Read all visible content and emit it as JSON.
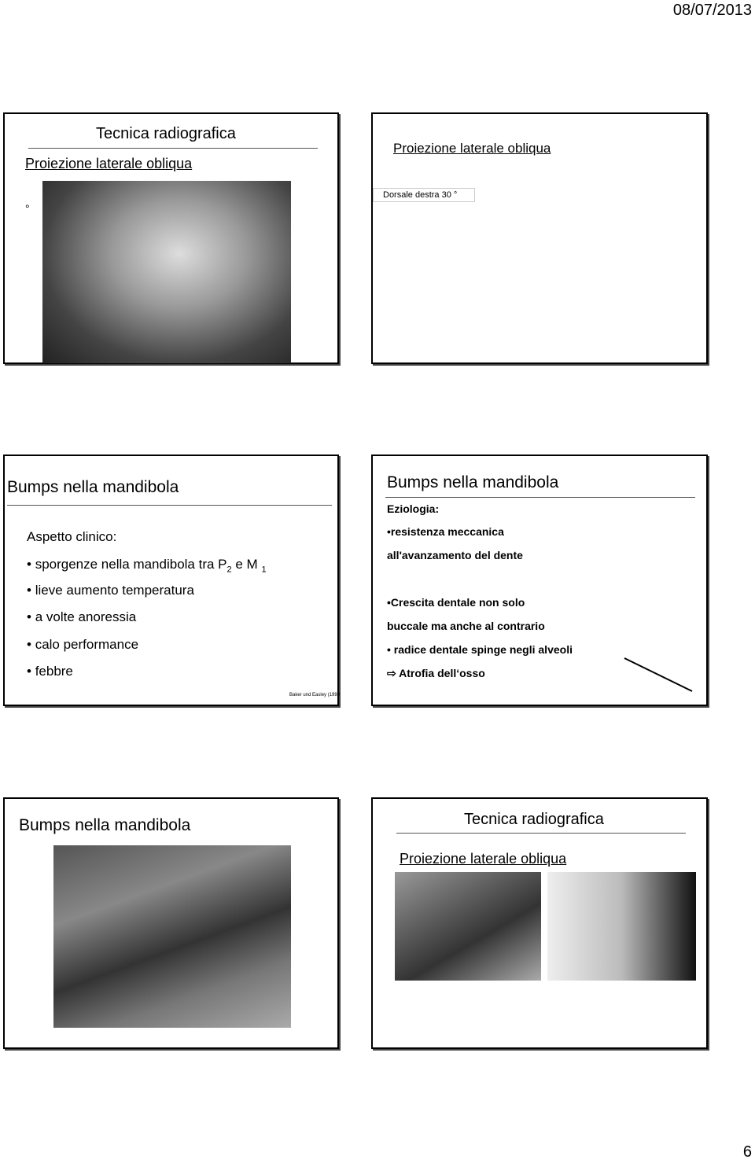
{
  "header": {
    "date": "08/07/2013"
  },
  "slides": [
    {
      "title": "Tecnica radiografica",
      "subtitle": "Proiezione laterale obliqua",
      "note": "°"
    },
    {
      "subtitle": "Proiezione laterale obliqua",
      "caption": "Dorsale destra 30 °"
    },
    {
      "title": "Bumps nella mandibola",
      "heading": "Aspetto clinico:",
      "bullets": [
        [
          "sporgenze nella mandibola tra P",
          "2",
          " e M ",
          "1"
        ],
        [
          "lieve aumento temperatura"
        ],
        [
          "a volte anoressia"
        ],
        [
          "calo performance"
        ],
        [
          "febbre"
        ]
      ],
      "citation": "Baker und Easley (1999"
    },
    {
      "title": "Bumps nella mandibola",
      "heading": "Eziologia:",
      "lines": [
        "•resistenza meccanica",
        "all'avanzamento del dente",
        "•Crescita dentale non solo",
        "buccale ma anche al contrario",
        "• radice dentale spinge negli alveoli",
        "Atrofia dell‘osso"
      ]
    },
    {
      "title": "Bumps nella mandibola"
    },
    {
      "title": "Tecnica radiografica",
      "subtitle": "Proiezione laterale obliqua"
    }
  ],
  "footer": {
    "page": "6"
  }
}
